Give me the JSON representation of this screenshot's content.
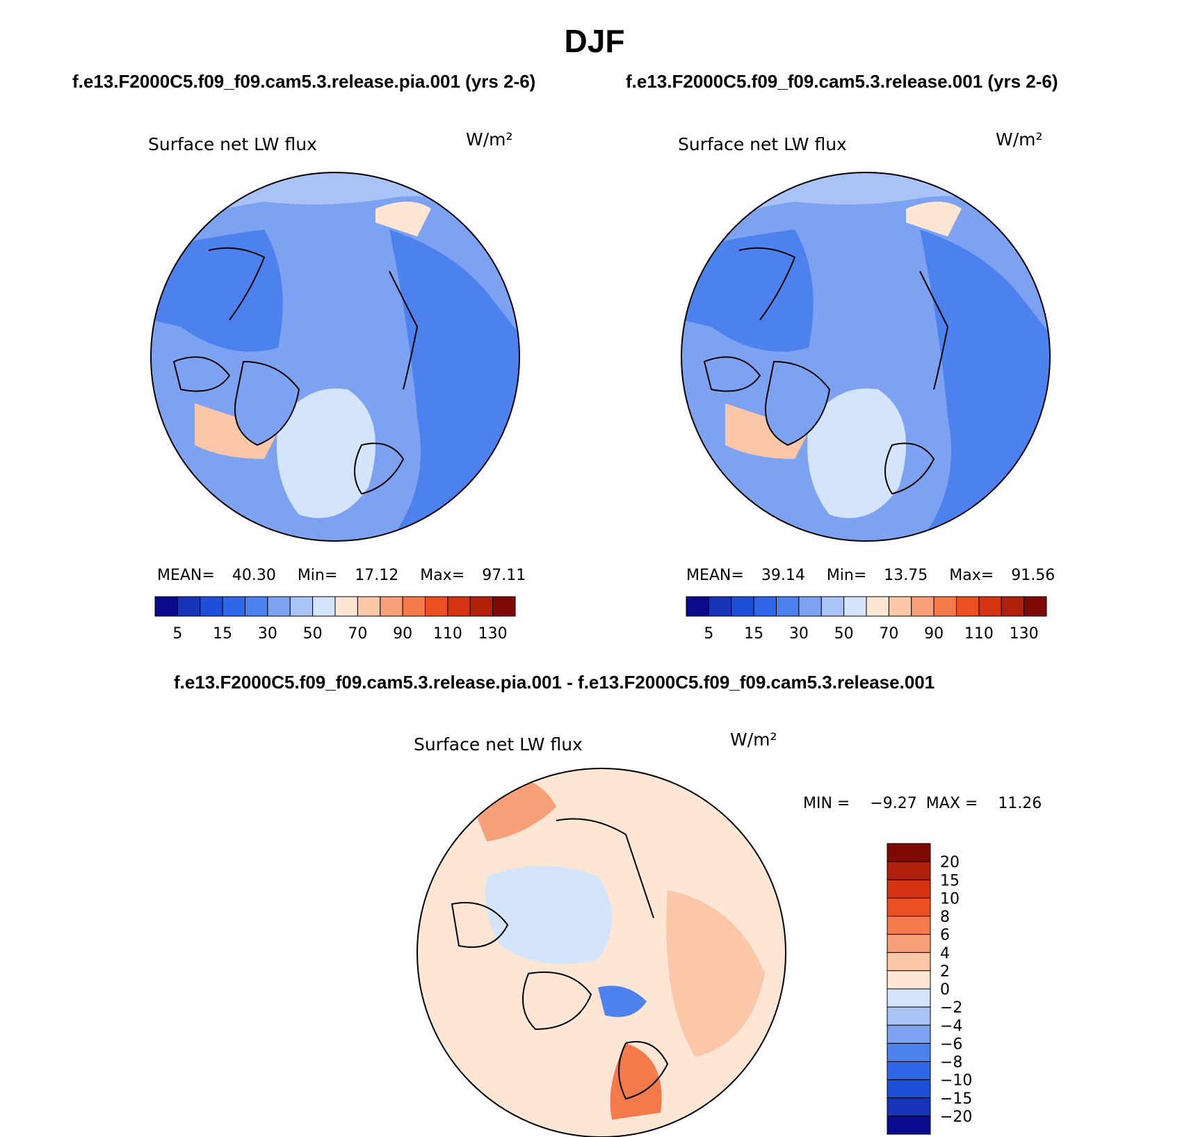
{
  "figure": {
    "title": "DJF",
    "case_a": "f.e13.F2000C5.f09_f09.cam5.3.release.pia.001 (yrs 2-6)",
    "case_b": "f.e13.F2000C5.f09_f09.cam5.3.release.001 (yrs 2-6)",
    "diff_title": "f.e13.F2000C5.f09_f09.cam5.3.release.pia.001 - f.e13.F2000C5.f09_f09.cam5.3.release.001"
  },
  "panels": [
    {
      "id": "case_a",
      "label": "Surface net LW flux",
      "units": "W/m²",
      "stats": {
        "mean_label": "MEAN=",
        "mean": "40.30",
        "min_label": "Min=",
        "min": "17.12",
        "max_label": "Max=",
        "max": "97.11"
      }
    },
    {
      "id": "case_b",
      "label": "Surface net LW flux",
      "units": "W/m²",
      "stats": {
        "mean_label": "MEAN=",
        "mean": "39.14",
        "min_label": "Min=",
        "min": "13.75",
        "max_label": "Max=",
        "max": "91.56"
      }
    },
    {
      "id": "difference",
      "label": "Surface net LW flux",
      "units": "W/m²",
      "stats": {
        "min_label": "MIN =",
        "min": "−9.27",
        "max_label": "MAX =",
        "max": "11.26"
      }
    }
  ],
  "colorbar_main": {
    "tick_labels": [
      "5",
      "15",
      "30",
      "50",
      "70",
      "90",
      "110",
      "130"
    ],
    "colors": [
      "#0a0a8c",
      "#1733b8",
      "#1f4fd9",
      "#2e66ea",
      "#4d82ee",
      "#7ea2f2",
      "#a9c3f7",
      "#d4e4fb",
      "#fde6d3",
      "#fbc7a8",
      "#f8a07a",
      "#f47a4c",
      "#ec4f22",
      "#d43412",
      "#b0200a",
      "#7f0a05"
    ]
  },
  "colorbar_diff": {
    "tick_labels": [
      "20",
      "15",
      "10",
      "8",
      "6",
      "4",
      "2",
      "0",
      "−2",
      "−4",
      "−6",
      "−8",
      "−10",
      "−15",
      "−20"
    ],
    "colors": [
      "#7f0a05",
      "#b0200a",
      "#d43412",
      "#ec4f22",
      "#f47a4c",
      "#f8a07a",
      "#fbc7a8",
      "#fde6d3",
      "#d4e4fb",
      "#a9c3f7",
      "#7ea2f2",
      "#4d82ee",
      "#2e66ea",
      "#1f4fd9",
      "#1733b8",
      "#0a0a8c"
    ]
  },
  "colors": {
    "ocean_blue": "#6f95ee",
    "deep_blue": "#3f6fe6",
    "land_outline": "#000000"
  }
}
